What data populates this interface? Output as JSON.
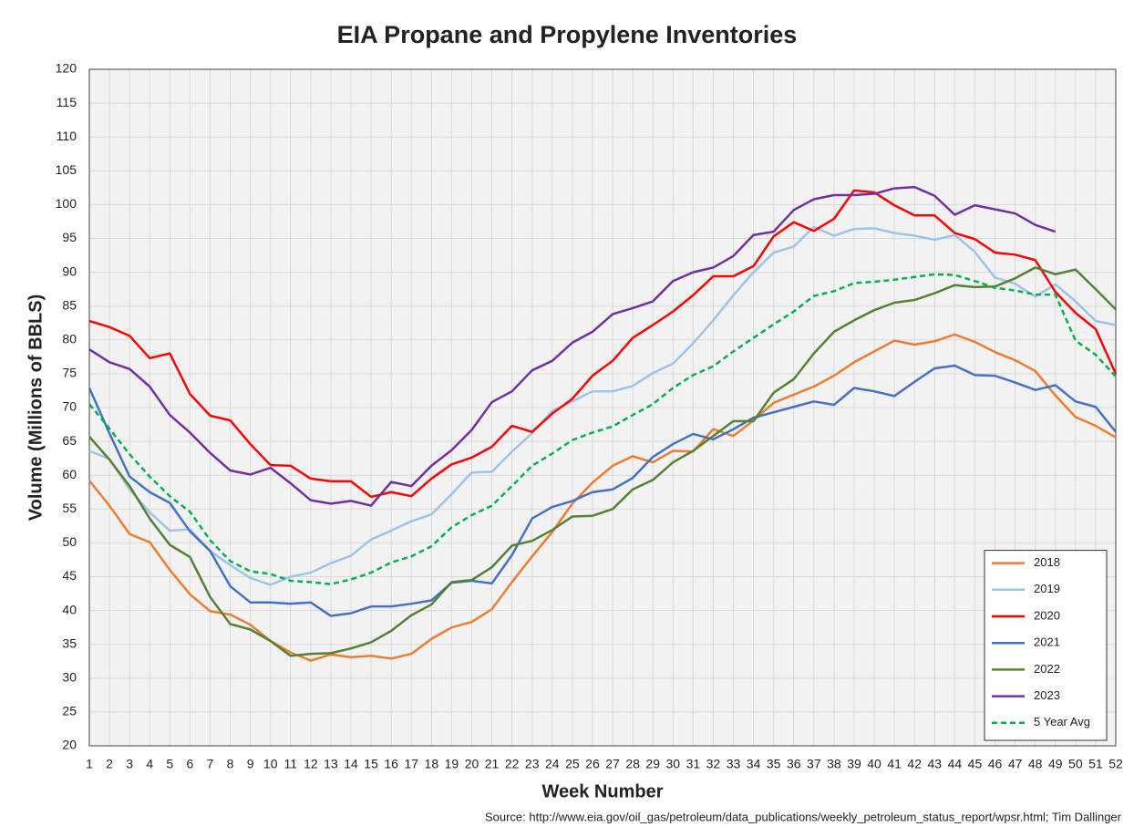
{
  "chart_data": {
    "type": "line",
    "title": "EIA Propane and Propylene Inventories",
    "x_label": "Week Number",
    "y_label": "Volume (Millions of BBLS)",
    "source": "Source: http://www.eia.gov/oil_gas/petroleum/data_publications/weekly_petroleum_status_report/wpsr.html; Tim Dallinger",
    "x": [
      1,
      2,
      3,
      4,
      5,
      6,
      7,
      8,
      9,
      10,
      11,
      12,
      13,
      14,
      15,
      16,
      17,
      18,
      19,
      20,
      21,
      22,
      23,
      24,
      25,
      26,
      27,
      28,
      29,
      30,
      31,
      32,
      33,
      34,
      35,
      36,
      37,
      38,
      39,
      40,
      41,
      42,
      43,
      44,
      45,
      46,
      47,
      48,
      49,
      50,
      51,
      52
    ],
    "xlim": [
      1,
      52
    ],
    "xticks": [
      1,
      2,
      3,
      4,
      5,
      6,
      7,
      8,
      9,
      10,
      11,
      12,
      13,
      14,
      15,
      16,
      17,
      18,
      19,
      20,
      21,
      22,
      23,
      24,
      25,
      26,
      27,
      28,
      29,
      30,
      31,
      32,
      33,
      34,
      35,
      36,
      37,
      38,
      39,
      40,
      41,
      42,
      43,
      44,
      45,
      46,
      47,
      48,
      49,
      50,
      51,
      52
    ],
    "ylim": [
      20,
      120
    ],
    "yticks": [
      20,
      25,
      30,
      35,
      40,
      45,
      50,
      55,
      60,
      65,
      70,
      75,
      80,
      85,
      90,
      95,
      100,
      105,
      110,
      115,
      120
    ],
    "grid": true,
    "legend": "lower right",
    "series": [
      {
        "name": "2018",
        "color": "#ed7d31",
        "style": "solid",
        "values": [
          59.2,
          55.5,
          51.3,
          50.1,
          46,
          42.4,
          39.9,
          39.4,
          37.9,
          35.5,
          33.8,
          32.6,
          33.5,
          33.1,
          33.3,
          32.9,
          33.6,
          35.8,
          37.5,
          38.3,
          40.2,
          44.2,
          48,
          51.6,
          55.8,
          58.9,
          61.4,
          62.8,
          61.9,
          63.6,
          63.5,
          66.8,
          65.8,
          68.1,
          70.7,
          71.9,
          73.1,
          74.7,
          76.7,
          78.3,
          79.9,
          79.3,
          79.8,
          80.8,
          79.7,
          78.2,
          77,
          75.4,
          71.8,
          68.6,
          67.3,
          65.6
        ]
      },
      {
        "name": "2019",
        "color": "#9dc3e6",
        "style": "solid",
        "values": [
          63.6,
          62.4,
          57.9,
          54.5,
          51.8,
          52,
          48.8,
          46.7,
          44.8,
          43.8,
          45,
          45.6,
          47,
          48.1,
          50.5,
          51.8,
          53.2,
          54.2,
          57.2,
          60.4,
          60.5,
          63.5,
          66.2,
          69.5,
          70.9,
          72.4,
          72.4,
          73.2,
          75.1,
          76.5,
          79.5,
          82.9,
          86.6,
          90,
          92.9,
          93.8,
          96.7,
          95.4,
          96.4,
          96.5,
          95.8,
          95.4,
          94.8,
          95.5,
          93,
          89.2,
          88.3,
          86.4,
          88.2,
          85.7,
          82.8,
          82.2
        ]
      },
      {
        "name": "2020",
        "color": "#ff0000",
        "style": "solid",
        "values": [
          82.8,
          81.9,
          80.6,
          77.3,
          78,
          72,
          68.8,
          68.1,
          64.6,
          61.5,
          61.4,
          59.5,
          59.1,
          59.1,
          56.8,
          57.5,
          56.9,
          59.5,
          61.6,
          62.6,
          64.2,
          67.3,
          66.4,
          69.1,
          71.3,
          74.7,
          76.9,
          80.3,
          82.2,
          84.2,
          86.6,
          89.4,
          89.4,
          90.9,
          95.3,
          97.4,
          96.1,
          97.9,
          102.1,
          101.8,
          99.9,
          98.4,
          98.4,
          95.8,
          94.9,
          92.9,
          92.6,
          91.8,
          87.1,
          84,
          81.6,
          75
        ]
      },
      {
        "name": "2021",
        "color": "#4472c4",
        "style": "solid",
        "values": [
          72.9,
          66.2,
          59.8,
          57.5,
          55.9,
          51.7,
          48.8,
          43.6,
          41.2,
          41.2,
          41,
          41.2,
          39.2,
          39.6,
          40.6,
          40.6,
          41,
          41.5,
          44.1,
          44.4,
          44,
          48.2,
          53.6,
          55.3,
          56.2,
          57.5,
          57.9,
          59.6,
          62.7,
          64.6,
          66.1,
          65.3,
          66.8,
          68.5,
          69.3,
          70.1,
          70.9,
          70.4,
          72.9,
          72.4,
          71.7,
          73.8,
          75.8,
          76.2,
          74.8,
          74.7,
          73.7,
          72.6,
          73.3,
          70.9,
          70.1,
          66.4
        ]
      },
      {
        "name": "2022",
        "color": "#548235",
        "style": "solid",
        "values": [
          65.7,
          62.3,
          58.4,
          53.6,
          49.7,
          47.9,
          42,
          38,
          37.2,
          35.5,
          33.3,
          33.6,
          33.7,
          34.4,
          35.3,
          37,
          39.3,
          40.9,
          44.2,
          44.5,
          46.4,
          49.6,
          50.3,
          51.9,
          53.9,
          54,
          55,
          57.9,
          59.3,
          61.9,
          63.6,
          65.8,
          68,
          68,
          72.2,
          74.2,
          78,
          81.2,
          82.9,
          84.4,
          85.5,
          85.9,
          86.9,
          88.1,
          87.8,
          87.9,
          89.1,
          90.7,
          89.7,
          90.4,
          87.5,
          84.5
        ]
      },
      {
        "name": "2023",
        "color": "#7030a0",
        "style": "solid",
        "values": [
          78.6,
          76.7,
          75.7,
          73.1,
          68.9,
          66.3,
          63.3,
          60.7,
          60.1,
          61.1,
          58.8,
          56.3,
          55.8,
          56.2,
          55.5,
          59,
          58.4,
          61.4,
          63.7,
          66.7,
          70.8,
          72.4,
          75.5,
          76.9,
          79.6,
          81.2,
          83.8,
          84.7,
          85.7,
          88.7,
          90,
          90.7,
          92.4,
          95.5,
          96,
          99.2,
          100.8,
          101.4,
          101.4,
          101.6,
          102.4,
          102.6,
          101.3,
          98.5,
          99.9,
          99.3,
          98.7,
          97,
          96,
          null,
          null,
          null
        ]
      },
      {
        "name": "5 Year Avg",
        "color": "#00b050",
        "style": "dashed",
        "values": [
          70.5,
          66.9,
          63.1,
          59.8,
          56.9,
          54.6,
          50.4,
          47.3,
          45.8,
          45.4,
          44.4,
          44.2,
          43.9,
          44.6,
          45.6,
          47.1,
          48,
          49.5,
          52.3,
          54.1,
          55.5,
          58.4,
          61.4,
          63.2,
          65.2,
          66.3,
          67.2,
          68.9,
          70.5,
          72.9,
          74.8,
          76.1,
          78.3,
          80.3,
          82.3,
          84.2,
          86.5,
          87.2,
          88.4,
          88.6,
          88.9,
          89.3,
          89.7,
          89.6,
          88.7,
          87.7,
          87.3,
          86.7,
          86.7,
          79.9,
          77.8,
          74.6
        ]
      }
    ]
  }
}
